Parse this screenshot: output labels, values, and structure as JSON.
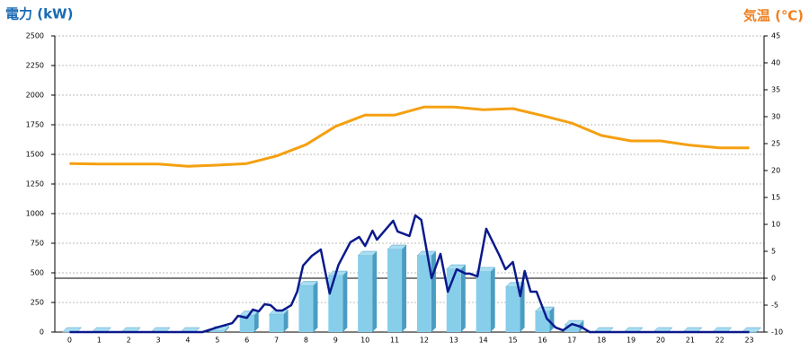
{
  "chart_data": {
    "type": "bar-line",
    "y_title": "電力 (kW)",
    "y2_title": "気温 (℃)",
    "categories": [
      "0",
      "1",
      "2",
      "3",
      "4",
      "5",
      "6",
      "7",
      "8",
      "9",
      "10",
      "11",
      "12",
      "13",
      "14",
      "15",
      "16",
      "17",
      "18",
      "19",
      "20",
      "21",
      "22",
      "23"
    ],
    "ylim": [
      0,
      2500
    ],
    "yticks": [
      0,
      250,
      500,
      750,
      1000,
      1250,
      1500,
      1750,
      2000,
      2250,
      2500
    ],
    "y2lim": [
      -10,
      45
    ],
    "y2ticks": [
      -10,
      -5,
      0,
      5,
      10,
      15,
      20,
      25,
      30,
      35,
      40,
      45
    ],
    "grid": true,
    "bars": {
      "color": "#87ceeb",
      "side_color": "#4a9cc2",
      "values": [
        0,
        0,
        0,
        0,
        0,
        10,
        140,
        150,
        390,
        477,
        644,
        697,
        644,
        530,
        508,
        380,
        174,
        60,
        0,
        0,
        0,
        0,
        0,
        0
      ]
    },
    "power_line": {
      "color": "#0a1a8c",
      "x": [
        0,
        4.5,
        5.0,
        5.5,
        5.7,
        6.0,
        6.2,
        6.4,
        6.6,
        6.8,
        7.0,
        7.2,
        7.5,
        7.7,
        7.9,
        8.2,
        8.5,
        8.8,
        9.1,
        9.5,
        9.8,
        10.0,
        10.25,
        10.4,
        10.95,
        11.1,
        11.5,
        11.7,
        11.9,
        12.25,
        12.55,
        12.8,
        13.1,
        13.4,
        13.55,
        13.8,
        14.1,
        14.55,
        14.75,
        15.0,
        15.25,
        15.4,
        15.6,
        15.8,
        16.15,
        16.45,
        16.7,
        17.0,
        17.3,
        17.6,
        23
      ],
      "values": [
        0,
        0,
        40,
        75,
        137,
        120,
        190,
        175,
        235,
        227,
        182,
        182,
        227,
        341,
        561,
        644,
        697,
        326,
        568,
        758,
        803,
        727,
        856,
        780,
        940,
        849,
        811,
        985,
        947,
        455,
        660,
        341,
        530,
        493,
        493,
        470,
        872,
        644,
        530,
        591,
        303,
        515,
        341,
        341,
        114,
        38,
        15,
        68,
        45,
        0,
        0
      ]
    },
    "temperature": {
      "color": "#f5a011",
      "axis": "y2",
      "values": [
        21.3,
        21.2,
        21.2,
        21.2,
        20.8,
        21.0,
        21.3,
        22.7,
        24.8,
        28.2,
        30.3,
        30.3,
        31.8,
        31.8,
        31.3,
        31.5,
        30.2,
        28.8,
        26.5,
        25.5,
        25.5,
        24.7,
        24.2,
        24.2
      ]
    }
  }
}
